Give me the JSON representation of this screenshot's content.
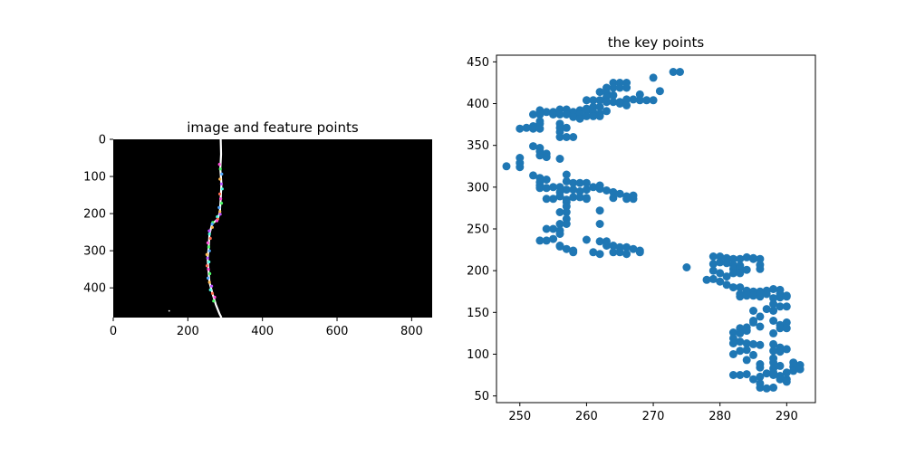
{
  "figure": {
    "background": "#ffffff"
  },
  "chart_data": [
    {
      "type": "image",
      "title": "image and feature points",
      "xlim": [
        0,
        855
      ],
      "ylim": [
        480,
        0
      ],
      "xticks": [
        0,
        200,
        400,
        600,
        800
      ],
      "yticks": [
        0,
        100,
        200,
        300,
        400
      ],
      "image_background": "#000000",
      "crack_color": "#ffffff",
      "crack_path": [
        [
          288,
          0
        ],
        [
          289,
          40
        ],
        [
          287,
          80
        ],
        [
          290,
          120
        ],
        [
          288,
          160
        ],
        [
          286,
          195
        ],
        [
          280,
          215
        ],
        [
          265,
          228
        ],
        [
          258,
          255
        ],
        [
          256,
          290
        ],
        [
          253,
          320
        ],
        [
          255,
          350
        ],
        [
          258,
          385
        ],
        [
          266,
          415
        ],
        [
          275,
          445
        ],
        [
          285,
          470
        ],
        [
          290,
          480
        ]
      ],
      "stray_pixel": [
        150,
        462
      ],
      "feature_colors": [
        "#ff4fd8",
        "#4fff6a",
        "#4fa8ff",
        "#ffb84f",
        "#b84fff",
        "#4fffe8",
        "#ff6b4f"
      ]
    },
    {
      "type": "scatter",
      "title": "the key points",
      "xlim": [
        246.5,
        294.3
      ],
      "ylim": [
        42,
        458
      ],
      "xticks": [
        250,
        260,
        270,
        280,
        290
      ],
      "yticks": [
        50,
        100,
        150,
        200,
        250,
        300,
        350,
        400,
        450
      ],
      "marker_color": "#1f77b4",
      "points": [
        [
          273,
          438
        ],
        [
          274,
          438
        ],
        [
          270,
          431
        ],
        [
          264,
          425
        ],
        [
          265,
          425
        ],
        [
          266,
          425
        ],
        [
          264,
          419
        ],
        [
          263,
          419
        ],
        [
          265,
          419
        ],
        [
          266,
          419
        ],
        [
          271,
          415
        ],
        [
          268,
          411
        ],
        [
          262,
          414
        ],
        [
          263,
          413
        ],
        [
          264,
          410
        ],
        [
          263,
          408
        ],
        [
          261,
          404
        ],
        [
          260,
          404
        ],
        [
          262,
          404
        ],
        [
          263,
          402
        ],
        [
          264,
          402
        ],
        [
          265,
          402
        ],
        [
          266,
          405
        ],
        [
          267,
          405
        ],
        [
          268,
          404
        ],
        [
          269,
          404
        ],
        [
          270,
          404
        ],
        [
          265,
          400
        ],
        [
          266,
          398
        ],
        [
          261,
          396
        ],
        [
          262,
          396
        ],
        [
          260,
          394
        ],
        [
          259,
          392
        ],
        [
          260,
          392
        ],
        [
          261,
          390
        ],
        [
          262,
          388
        ],
        [
          263,
          391
        ],
        [
          258,
          390
        ],
        [
          259,
          387
        ],
        [
          258,
          384
        ],
        [
          259,
          382
        ],
        [
          260,
          385
        ],
        [
          261,
          385
        ],
        [
          262,
          385
        ],
        [
          253,
          392
        ],
        [
          254,
          390
        ],
        [
          255,
          390
        ],
        [
          256,
          393
        ],
        [
          257,
          393
        ],
        [
          253,
          387
        ],
        [
          252,
          387
        ],
        [
          255,
          387
        ],
        [
          256,
          387
        ],
        [
          257,
          387
        ],
        [
          253,
          379
        ],
        [
          253,
          376
        ],
        [
          252,
          373
        ],
        [
          251,
          371
        ],
        [
          250,
          370
        ],
        [
          252,
          370
        ],
        [
          253,
          370
        ],
        [
          256,
          376
        ],
        [
          256,
          371
        ],
        [
          257,
          371
        ],
        [
          256,
          366
        ],
        [
          256,
          360
        ],
        [
          257,
          360
        ],
        [
          258,
          360
        ],
        [
          252,
          349
        ],
        [
          253,
          347
        ],
        [
          253,
          343
        ],
        [
          253,
          338
        ],
        [
          254,
          340
        ],
        [
          254,
          336
        ],
        [
          256,
          334
        ],
        [
          250,
          335
        ],
        [
          250,
          329
        ],
        [
          250,
          324
        ],
        [
          248,
          325
        ],
        [
          252,
          314
        ],
        [
          253,
          311
        ],
        [
          254,
          309
        ],
        [
          253,
          306
        ],
        [
          253,
          302
        ],
        [
          253,
          299
        ],
        [
          254,
          299
        ],
        [
          255,
          300
        ],
        [
          257,
          315
        ],
        [
          257,
          307
        ],
        [
          258,
          305
        ],
        [
          259,
          305
        ],
        [
          256,
          300
        ],
        [
          257,
          297
        ],
        [
          258,
          297
        ],
        [
          259,
          295
        ],
        [
          260,
          297
        ],
        [
          260,
          305
        ],
        [
          261,
          300
        ],
        [
          262,
          302
        ],
        [
          262,
          298
        ],
        [
          263,
          296
        ],
        [
          264,
          294
        ],
        [
          256,
          294
        ],
        [
          256,
          289
        ],
        [
          255,
          286
        ],
        [
          254,
          286
        ],
        [
          257,
          285
        ],
        [
          258,
          288
        ],
        [
          259,
          288
        ],
        [
          260,
          287
        ],
        [
          260,
          286
        ],
        [
          265,
          292
        ],
        [
          266,
          289
        ],
        [
          266,
          286
        ],
        [
          267,
          290
        ],
        [
          267,
          286
        ],
        [
          264,
          287
        ],
        [
          257,
          282
        ],
        [
          257,
          277
        ],
        [
          256,
          270
        ],
        [
          257,
          270
        ],
        [
          257,
          262
        ],
        [
          256,
          256
        ],
        [
          257,
          256
        ],
        [
          262,
          272
        ],
        [
          262,
          256
        ],
        [
          254,
          250
        ],
        [
          255,
          250
        ],
        [
          256,
          248
        ],
        [
          256,
          244
        ],
        [
          255,
          238
        ],
        [
          254,
          236
        ],
        [
          253,
          236
        ],
        [
          256,
          230
        ],
        [
          256,
          229
        ],
        [
          257,
          226
        ],
        [
          258,
          224
        ],
        [
          258,
          222
        ],
        [
          260,
          237
        ],
        [
          261,
          222
        ],
        [
          262,
          220
        ],
        [
          262,
          235
        ],
        [
          263,
          235
        ],
        [
          263,
          230
        ],
        [
          264,
          230
        ],
        [
          264,
          222
        ],
        [
          265,
          222
        ],
        [
          265,
          228
        ],
        [
          266,
          228
        ],
        [
          266,
          220
        ],
        [
          267,
          226
        ],
        [
          268,
          224
        ],
        [
          268,
          222
        ],
        [
          275,
          204
        ],
        [
          279,
          217
        ],
        [
          280,
          217
        ],
        [
          281,
          215
        ],
        [
          282,
          214
        ],
        [
          283,
          214
        ],
        [
          284,
          216
        ],
        [
          285,
          215
        ],
        [
          286,
          214
        ],
        [
          280,
          210
        ],
        [
          281,
          209
        ],
        [
          279,
          208
        ],
        [
          282,
          207
        ],
        [
          283,
          206
        ],
        [
          282,
          202
        ],
        [
          283,
          202
        ],
        [
          284,
          201
        ],
        [
          282,
          197
        ],
        [
          283,
          197
        ],
        [
          279,
          200
        ],
        [
          280,
          197
        ],
        [
          281,
          193
        ],
        [
          286,
          207
        ],
        [
          286,
          202
        ],
        [
          285,
          214
        ],
        [
          278,
          189
        ],
        [
          279,
          190
        ],
        [
          280,
          187
        ],
        [
          281,
          183
        ],
        [
          282,
          180
        ],
        [
          283,
          180
        ],
        [
          284,
          176
        ],
        [
          285,
          175
        ],
        [
          286,
          175
        ],
        [
          287,
          176
        ],
        [
          288,
          178
        ],
        [
          289,
          177
        ],
        [
          283,
          172
        ],
        [
          283,
          169
        ],
        [
          284,
          170
        ],
        [
          285,
          170
        ],
        [
          286,
          169
        ],
        [
          286,
          172
        ],
        [
          287,
          172
        ],
        [
          289,
          172
        ],
        [
          290,
          170
        ],
        [
          289,
          168
        ],
        [
          290,
          169
        ],
        [
          288,
          167
        ],
        [
          288,
          160
        ],
        [
          289,
          157
        ],
        [
          290,
          157
        ],
        [
          287,
          154
        ],
        [
          288,
          152
        ],
        [
          285,
          152
        ],
        [
          286,
          145
        ],
        [
          285,
          140
        ],
        [
          285,
          138
        ],
        [
          286,
          133
        ],
        [
          284,
          132
        ],
        [
          283,
          131
        ],
        [
          284,
          128
        ],
        [
          282,
          126
        ],
        [
          283,
          125
        ],
        [
          288,
          140
        ],
        [
          289,
          135
        ],
        [
          290,
          138
        ],
        [
          289,
          131
        ],
        [
          290,
          131
        ],
        [
          288,
          125
        ],
        [
          282,
          119
        ],
        [
          283,
          115
        ],
        [
          282,
          113
        ],
        [
          284,
          113
        ],
        [
          285,
          112
        ],
        [
          286,
          111
        ],
        [
          284,
          105
        ],
        [
          283,
          104
        ],
        [
          282,
          100
        ],
        [
          288,
          112
        ],
        [
          289,
          108
        ],
        [
          288,
          104
        ],
        [
          289,
          103
        ],
        [
          290,
          106
        ],
        [
          285,
          99
        ],
        [
          284,
          93
        ],
        [
          286,
          88
        ],
        [
          286,
          84
        ],
        [
          284,
          76
        ],
        [
          283,
          75
        ],
        [
          282,
          75
        ],
        [
          286,
          73
        ],
        [
          285,
          70
        ],
        [
          286,
          65
        ],
        [
          286,
          60
        ],
        [
          287,
          77
        ],
        [
          288,
          95
        ],
        [
          288,
          90
        ],
        [
          289,
          86
        ],
        [
          288,
          83
        ],
        [
          288,
          78
        ],
        [
          288,
          75
        ],
        [
          289,
          74
        ],
        [
          289,
          70
        ],
        [
          290,
          70
        ],
        [
          290,
          67
        ],
        [
          288,
          60
        ],
        [
          287,
          59
        ],
        [
          291,
          90
        ],
        [
          292,
          87
        ],
        [
          291,
          85
        ],
        [
          291,
          80
        ],
        [
          290,
          78
        ],
        [
          292,
          82
        ]
      ]
    }
  ]
}
